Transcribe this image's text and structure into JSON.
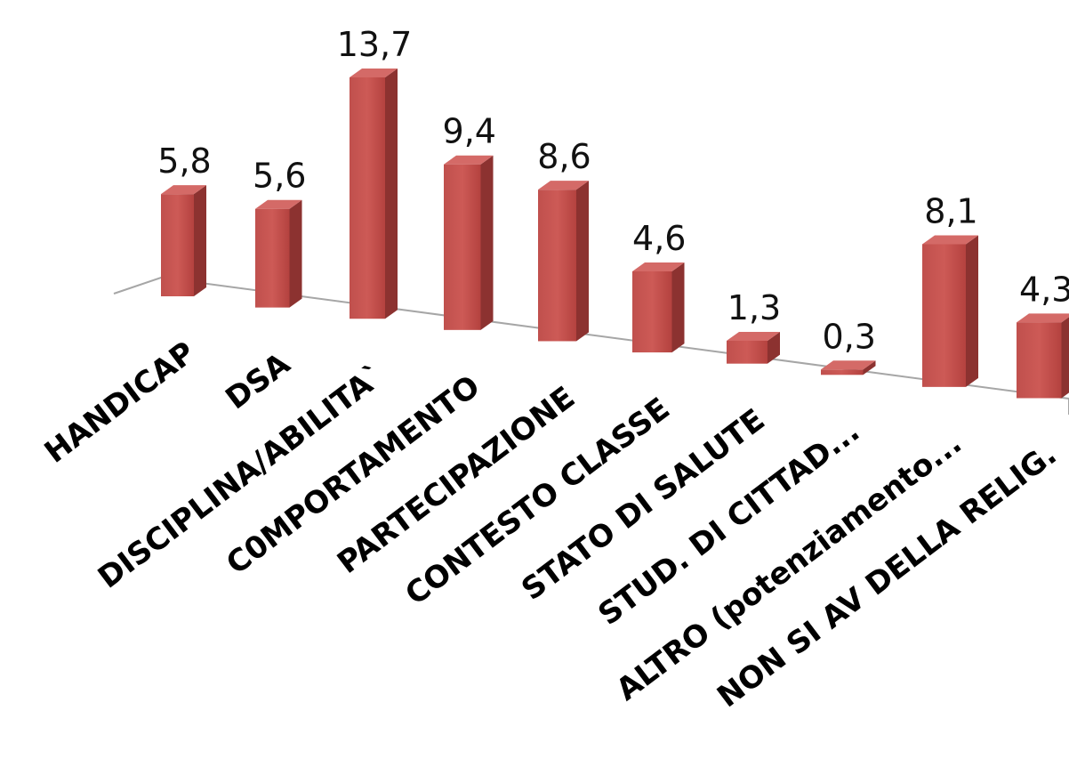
{
  "chart_data": {
    "type": "bar",
    "categories": [
      "HANDICAP",
      "DSA",
      "DISCIPLINA/ABILITA`",
      "C0MPORTAMENTO",
      "PARTECIPAZIONE",
      "CONTESTO CLASSE",
      "STATO DI SALUTE",
      "STUD. DI CITTAD...",
      "ALTRO (potenziamento...",
      "NON SI AV DELLA RELIG."
    ],
    "values": [
      5.8,
      5.6,
      13.7,
      9.4,
      8.6,
      4.6,
      1.3,
      0.3,
      8.1,
      4.3
    ],
    "value_labels": [
      "5,8",
      "5,6",
      "13,7",
      "9,4",
      "8,6",
      "4,6",
      "1,3",
      "0,3",
      "8,1",
      "4,3"
    ],
    "title": "",
    "xlabel": "",
    "ylabel": "",
    "ylim": [
      0,
      14
    ],
    "grid": false,
    "legend": "none",
    "style": "3d-column",
    "colors": {
      "bar_front": "#c0504d",
      "bar_side": "#8c3230",
      "bar_top": "#d46a67",
      "floor_line": "#a6a6a6"
    }
  }
}
